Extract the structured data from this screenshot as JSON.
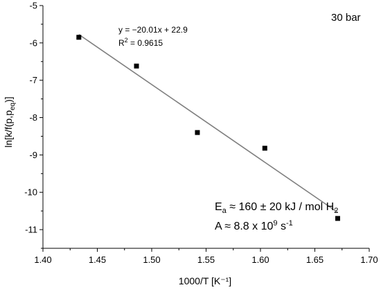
{
  "chart_data": {
    "type": "scatter",
    "title": "",
    "xlabel": "1000/T [K⁻¹]",
    "ylabel": "ln[k/f(p,p_eq)]",
    "xlim": [
      1.4,
      1.7
    ],
    "ylim": [
      -11.5,
      -5
    ],
    "x_ticks": [
      1.4,
      1.45,
      1.5,
      1.55,
      1.6,
      1.65,
      1.7
    ],
    "x_tick_labels": [
      "1.40",
      "1.45",
      "1.50",
      "1.55",
      "1.60",
      "1.65",
      "1.70"
    ],
    "y_ticks": [
      -11,
      -10,
      -9,
      -8,
      -7,
      -6,
      -5
    ],
    "y_tick_labels": [
      "-11",
      "-10",
      "-9",
      "-8",
      "-7",
      "-6",
      "-5"
    ],
    "grid": false,
    "legend": "none",
    "series": [
      {
        "x": [
          1.433,
          1.486,
          1.542,
          1.604,
          1.671
        ],
        "y": [
          -5.85,
          -6.62,
          -8.4,
          -8.82,
          -10.7
        ],
        "marker": "square",
        "color": "#000000"
      }
    ],
    "fit_line": {
      "slope": -20.01,
      "intercept": 22.9,
      "x_range": [
        1.433,
        1.671
      ],
      "color": "#808080"
    },
    "annotations": {
      "condition": "30 bar",
      "equation": "y = −20.01x + 22.9",
      "r2_label": "R",
      "r2_exp": "2",
      "r2_value": " = 0.9615",
      "ea_main": "E",
      "ea_sub": "a",
      "ea_rest": " ≈ 160 ± 20 kJ / mol H",
      "ea_sub2": "2",
      "a_main": "A ≈ 8.8 x 10",
      "a_exp": "9",
      "a_unit": " s",
      "a_unit_exp": "-1"
    }
  }
}
